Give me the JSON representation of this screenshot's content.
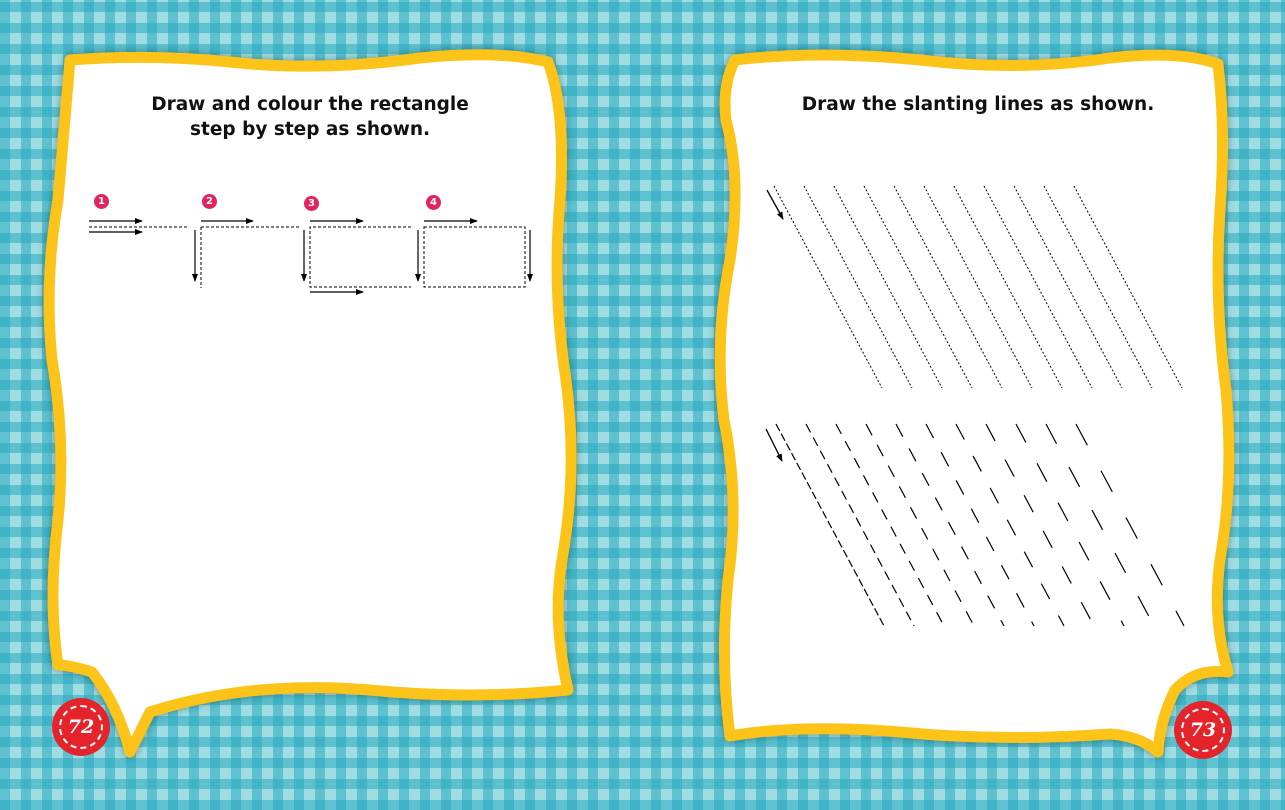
{
  "left_page": {
    "instruction_line1": "Draw and colour the rectangle",
    "instruction_line2": "step by step as shown.",
    "steps": [
      "1",
      "2",
      "3",
      "4"
    ],
    "page_number": "72"
  },
  "right_page": {
    "instruction": "Draw the slanting lines as shown.",
    "page_number": "73"
  },
  "colors": {
    "frame_yellow": "#fcc419",
    "badge_pink": "#e0245e",
    "page_number_red": "#e4232b",
    "background_teal": "#9fdde3"
  }
}
